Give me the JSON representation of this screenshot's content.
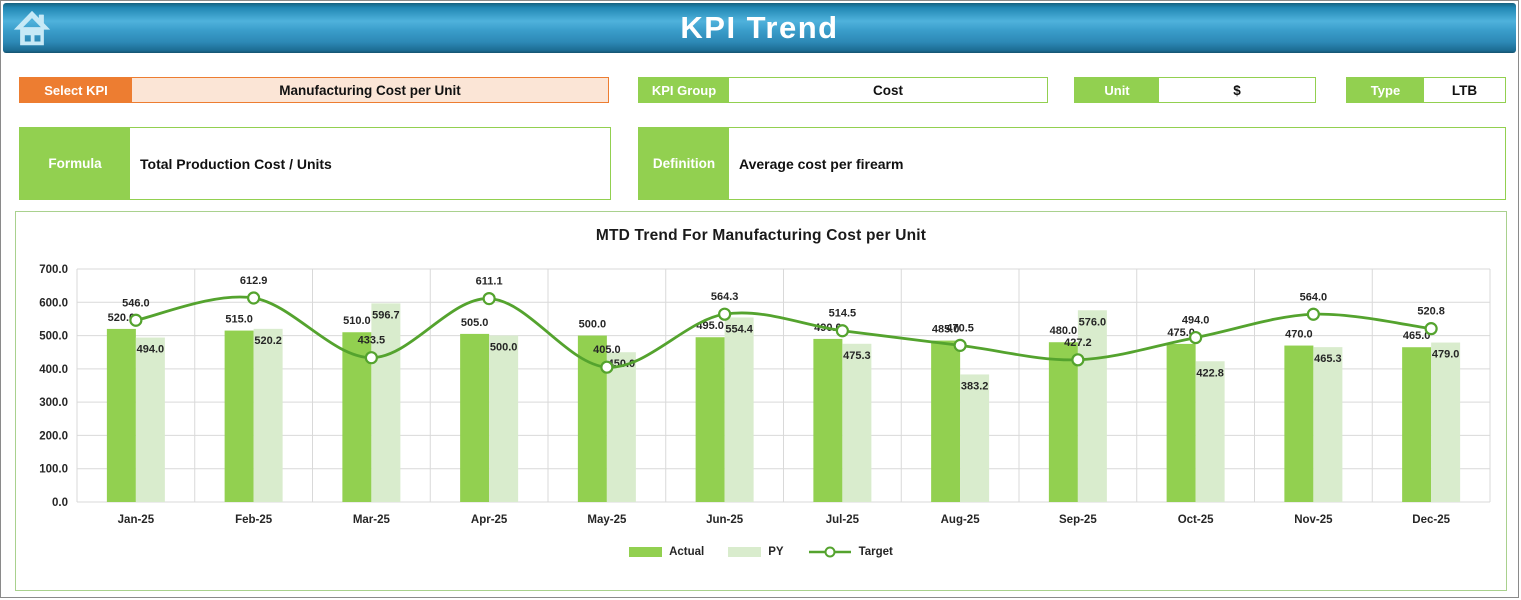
{
  "header": {
    "title": "KPI Trend",
    "icon": "home-icon"
  },
  "fields": {
    "select_kpi": {
      "label": "Select KPI",
      "value": "Manufacturing Cost per Unit"
    },
    "kpi_group": {
      "label": "KPI Group",
      "value": "Cost"
    },
    "unit": {
      "label": "Unit",
      "value": "$"
    },
    "type": {
      "label": "Type",
      "value": "LTB"
    },
    "formula": {
      "label": "Formula",
      "value": "Total Production Cost / Units"
    },
    "definition": {
      "label": "Definition",
      "value": "Average cost per firearm"
    }
  },
  "colors": {
    "accent_orange": "#ED7D31",
    "orange_fill": "#FBE5D6",
    "accent_green": "#92D050",
    "py_green": "#D9ECCD",
    "target_line_green": "#54A32E",
    "chart_border_green": "#A9D18E",
    "header_blue": "#2E94C4",
    "gridline": "#D9D9D9"
  },
  "chart_data": {
    "type": "bar",
    "title": "MTD Trend For Manufacturing Cost per Unit",
    "categories": [
      "Jan-25",
      "Feb-25",
      "Mar-25",
      "Apr-25",
      "May-25",
      "Jun-25",
      "Jul-25",
      "Aug-25",
      "Sep-25",
      "Oct-25",
      "Nov-25",
      "Dec-25"
    ],
    "series": [
      {
        "name": "Actual",
        "chart": "bar",
        "color": "#92D050",
        "values": [
          520.0,
          515.0,
          510.0,
          505.0,
          500.0,
          495.0,
          490.0,
          485.0,
          480.0,
          475.0,
          470.0,
          465.0
        ]
      },
      {
        "name": "PY",
        "chart": "bar",
        "color": "#D9ECCD",
        "values": [
          494.0,
          520.2,
          596.7,
          500.0,
          450.0,
          554.4,
          475.3,
          383.2,
          576.0,
          422.8,
          465.3,
          479.0
        ]
      },
      {
        "name": "Target",
        "chart": "line",
        "color": "#54A32E",
        "values": [
          546.0,
          612.9,
          433.5,
          611.1,
          405.0,
          564.3,
          514.5,
          470.5,
          427.2,
          494.0,
          564.0,
          520.8
        ]
      }
    ],
    "xlabel": "",
    "ylabel": "",
    "ylim": [
      0,
      700
    ],
    "ytick_step": 100,
    "ytick_format": "one-decimal",
    "grid": true,
    "data_labels": true,
    "legend_position": "bottom"
  }
}
